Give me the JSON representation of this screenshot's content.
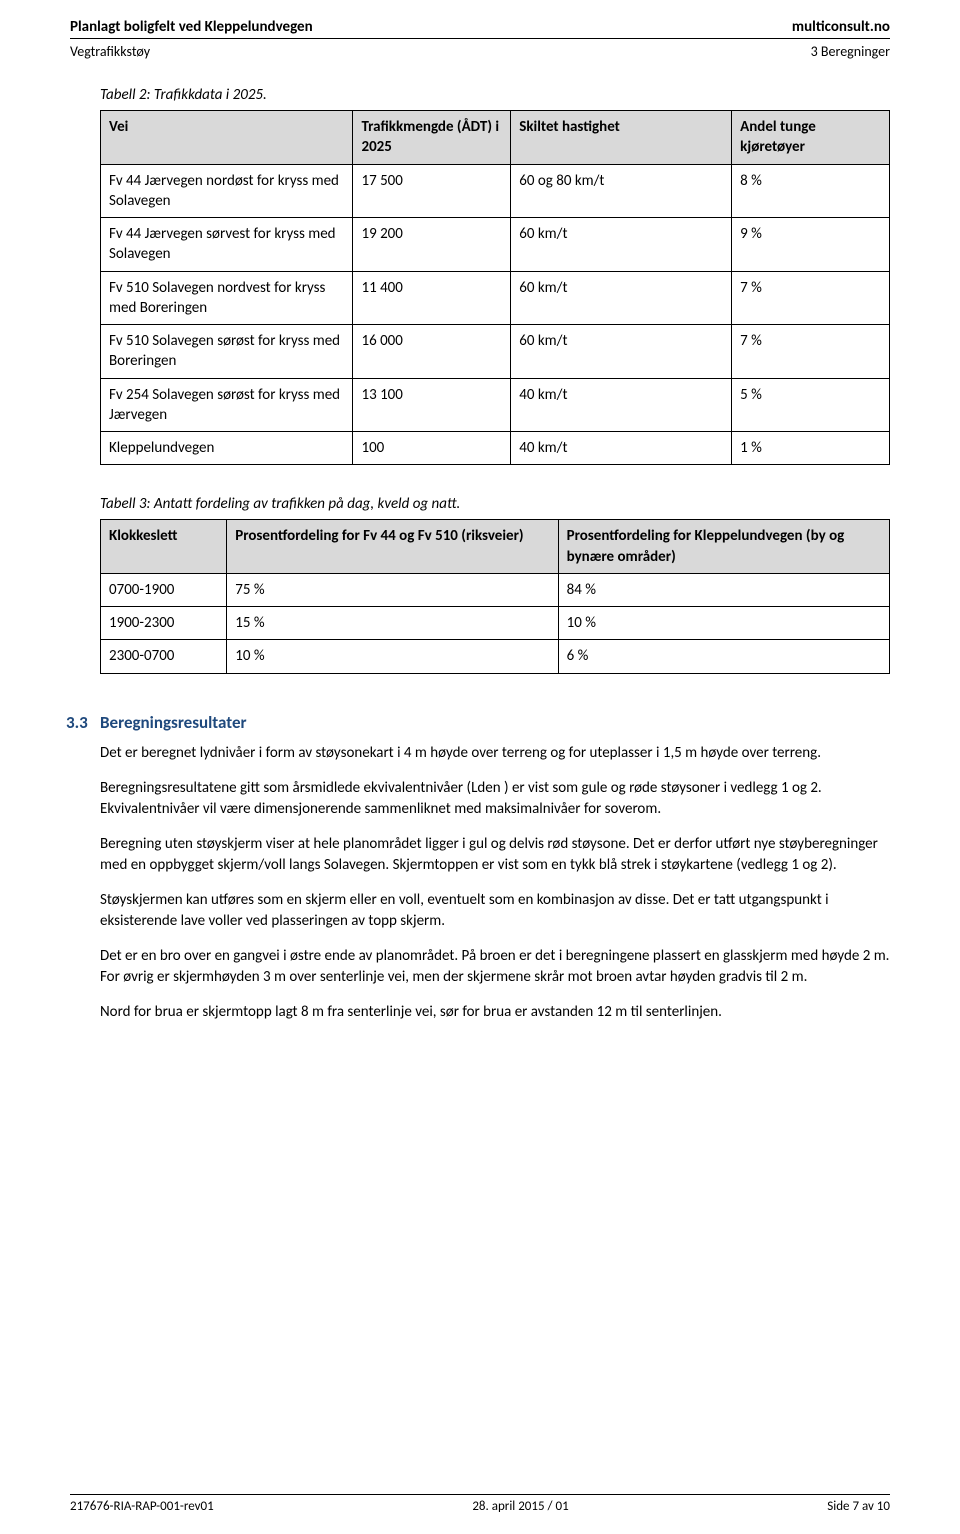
{
  "header": {
    "title_left": "Planlagt boligfelt ved Kleppelundvegen",
    "title_right": "multiconsult.no",
    "sub_left": "Vegtrafikkstøy",
    "sub_right": "3 Beregninger"
  },
  "table2": {
    "caption": "Tabell 2: Trafikkdata i 2025.",
    "columns": [
      "Vei",
      "Trafikkmengde (ÅDT) i 2025",
      "Skiltet hastighet",
      "Andel tunge kjøretøyer"
    ],
    "rows": [
      [
        "Fv 44 Jærvegen nordøst for kryss med Solavegen",
        "17 500",
        "60 og 80 km/t",
        "8 %"
      ],
      [
        "Fv 44 Jærvegen sørvest for kryss med Solavegen",
        "19 200",
        "60 km/t",
        "9 %"
      ],
      [
        "Fv 510 Solavegen nordvest for kryss med Boreringen",
        "11 400",
        "60 km/t",
        "7 %"
      ],
      [
        "Fv 510 Solavegen sørøst for kryss med Boreringen",
        "16 000",
        "60 km/t",
        "7 %"
      ],
      [
        "Fv 254 Solavegen sørøst for kryss med Jærvegen",
        "13 100",
        "40 km/t",
        "5 %"
      ],
      [
        "Kleppelundvegen",
        "100",
        "40 km/t",
        "1 %"
      ]
    ]
  },
  "table3": {
    "caption": "Tabell 3: Antatt fordeling av trafikken på dag, kveld og natt.",
    "columns": [
      "Klokkeslett",
      "Prosentfordeling for Fv 44 og Fv 510 (riksveier)",
      "Prosentfordeling for Kleppelundvegen (by og bynære områder)"
    ],
    "rows": [
      [
        "0700-1900",
        "75 %",
        "84 %"
      ],
      [
        "1900-2300",
        "15 %",
        "10 %"
      ],
      [
        "2300-0700",
        "10 %",
        "6 %"
      ]
    ]
  },
  "section": {
    "number": "3.3",
    "title": "Beregningsresultater",
    "paragraphs": [
      "Det er beregnet lydnivåer i form av støysonekart i 4 m høyde over terreng og for uteplasser i 1,5 m høyde over terreng.",
      "Beregningsresultatene gitt som årsmidlede ekvivalentnivåer (Lden ) er vist som gule og røde støysoner i vedlegg 1 og 2. Ekvivalentnivåer vil være dimensjonerende sammenliknet med maksimalnivåer for soverom.",
      "Beregning uten støyskjerm viser at hele planområdet ligger i gul og delvis rød støysone. Det er derfor utført nye støyberegninger med en oppbygget skjerm/voll langs Solavegen. Skjermtoppen er vist som en tykk blå strek i støykartene (vedlegg 1 og 2).",
      "Støyskjermen kan utføres som en skjerm eller en voll, eventuelt som en kombinasjon av disse. Det er tatt utgangspunkt i eksisterende lave voller ved plasseringen av topp skjerm.",
      "Det er en bro over en gangvei i østre ende av planområdet. På broen er det i beregningene plassert en glasskjerm med høyde 2 m. For øvrig er skjermhøyden 3 m over senterlinje vei, men der skjermene skrår mot broen avtar høyden gradvis til 2 m.",
      "Nord for brua er skjermtopp lagt 8 m fra senterlinje vei, sør for brua er avstanden 12 m til senterlinjen."
    ]
  },
  "footer": {
    "left": "217676-RIA-RAP-001-rev01",
    "center": "28. april 2015 / 01",
    "right": "Side 7 av 10"
  }
}
